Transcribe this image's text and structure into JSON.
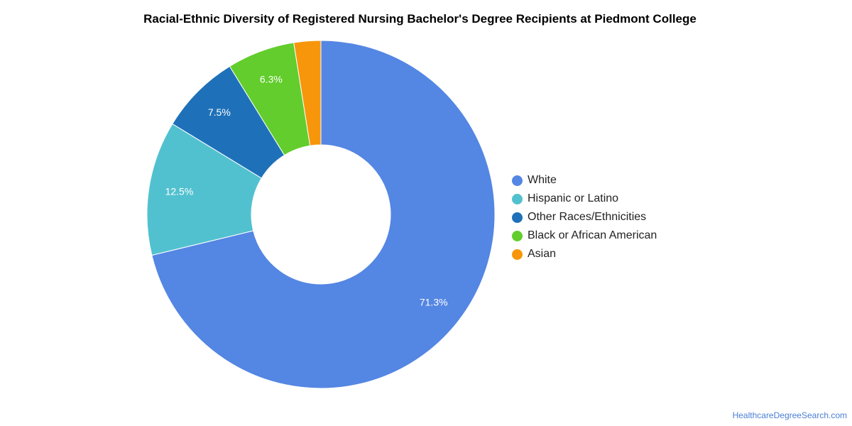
{
  "title": "Racial-Ethnic Diversity of Registered Nursing Bachelor's Degree Recipients at Piedmont College",
  "source_credit": "HealthcareDegreeSearch.com",
  "chart_data": {
    "type": "pie",
    "donut": true,
    "title": "Racial-Ethnic Diversity of Registered Nursing Bachelor's Degree Recipients at Piedmont College",
    "legend_position": "right",
    "slices": [
      {
        "label": "White",
        "value": 71.3,
        "display": "71.3%",
        "color": "#5486e3"
      },
      {
        "label": "Hispanic or Latino",
        "value": 12.5,
        "display": "12.5%",
        "color": "#52c1cf"
      },
      {
        "label": "Other Races/Ethnicities",
        "value": 7.5,
        "display": "7.5%",
        "color": "#1e71b9"
      },
      {
        "label": "Black or African American",
        "value": 6.3,
        "display": "6.3%",
        "color": "#62cd2c"
      },
      {
        "label": "Asian",
        "value": 2.5,
        "display": "",
        "color": "#f7960b"
      }
    ]
  }
}
